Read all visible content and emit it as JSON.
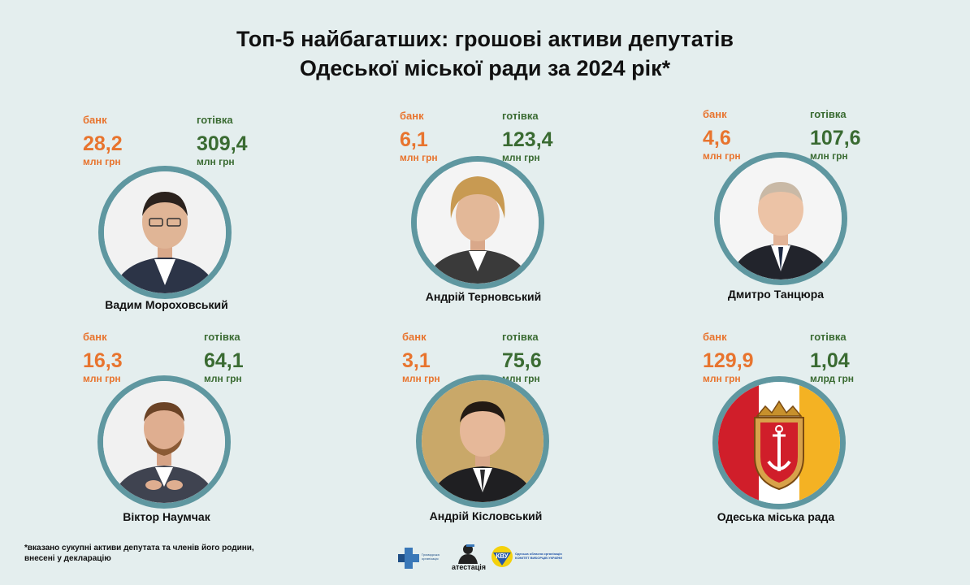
{
  "title_line1": "Топ-5 найбагатших: грошові активи депутатів",
  "title_line2": "Одеської міської ради за 2024 рік*",
  "bank_label": "банк",
  "cash_label": "готівка",
  "colors": {
    "bank": "#e8742e",
    "cash": "#3a6b32",
    "ring": "#5f97a0",
    "background": "#e4eeee"
  },
  "cards": [
    {
      "name": "Вадим Мороховський",
      "bank_value": "28,2",
      "bank_unit": "млн грн",
      "cash_value": "309,4",
      "cash_unit": "млн грн",
      "icon": "person-photo"
    },
    {
      "name": "Андрій Терновський",
      "bank_value": "6,1",
      "bank_unit": "млн грн",
      "cash_value": "123,4",
      "cash_unit": "млн грн",
      "icon": "person-photo"
    },
    {
      "name": "Дмитро Танцюра",
      "bank_value": "4,6",
      "bank_unit": "млн грн",
      "cash_value": "107,6",
      "cash_unit": "млн грн",
      "icon": "person-photo"
    },
    {
      "name": "Віктор Наумчак",
      "bank_value": "16,3",
      "bank_unit": "млн грн",
      "cash_value": "64,1",
      "cash_unit": "млн грн",
      "icon": "person-photo"
    },
    {
      "name": "Андрій Кісловський",
      "bank_value": "3,1",
      "bank_unit": "млн грн",
      "cash_value": "75,6",
      "cash_unit": "млн грн",
      "icon": "person-photo"
    },
    {
      "name": "Одеська міська рада",
      "bank_value": "129,9",
      "bank_unit": "млн грн",
      "cash_value": "1,04",
      "cash_unit": "млрд грн",
      "icon": "odesa-coat-of-arms-flag"
    }
  ],
  "footnote_line1": "*вказано сукупні активи депутата та членів його родини,",
  "footnote_line2": "внесені у декларацію",
  "logos": [
    {
      "icon": "organization-logo-blue-cross",
      "text": "Громадська організація"
    },
    {
      "icon": "atestatsiia-logo",
      "text": "атестація"
    },
    {
      "icon": "voters-committee-logo",
      "text": "Одеська обласна організація КОМІТЕТ ВИБОРЦІВ УКРАЇНИ"
    }
  ]
}
